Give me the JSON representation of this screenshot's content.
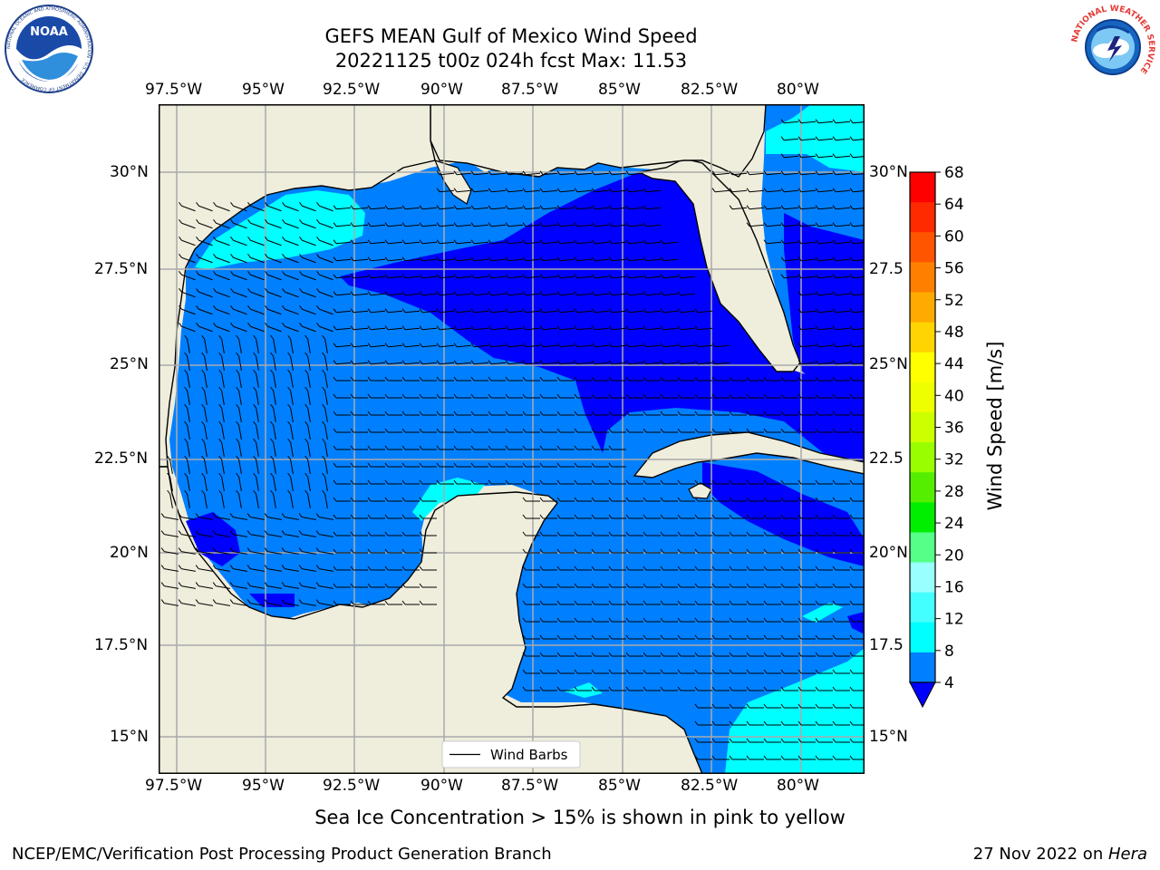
{
  "title_line1": "GEFS MEAN Gulf of Mexico Wind Speed",
  "title_line2": "20221125 t00z 024h fcst   Max: 11.53",
  "logos": {
    "noaa_text": "NOAA",
    "noaa_ring_text": "NATIONAL OCEANIC AND ATMOSPHERIC ADMINISTRATION · U.S. DEPARTMENT OF COMMERCE",
    "nws_ring_text": "NATIONAL WEATHER SERVICE"
  },
  "map": {
    "lon_ticks": [
      "97.5°W",
      "95°W",
      "92.5°W",
      "90°W",
      "87.5°W",
      "85°W",
      "82.5°W",
      "80°W"
    ],
    "lat_ticks": [
      "30°N",
      "27.5°N",
      "25°N",
      "22.5°N",
      "20°N",
      "17.5°N",
      "15°N"
    ],
    "lat_ticks_right": [
      "30°N",
      "27.5",
      "25°N",
      "22.5",
      "20°N",
      "17.5",
      "15°N"
    ],
    "legend_label": "Wind Barbs",
    "colors": {
      "land": "#efeddc",
      "band_4_8": "#0080ff",
      "band_lt4": "#0000ff",
      "band_8_12": "#00ffff",
      "band_12_16": "#40ffff"
    }
  },
  "colorbar": {
    "label": "Wind Speed [m/s]",
    "ticks": [
      "68",
      "64",
      "60",
      "56",
      "52",
      "48",
      "44",
      "40",
      "36",
      "32",
      "28",
      "24",
      "20",
      "16",
      "12",
      "8",
      "4"
    ],
    "colors": [
      "#ff0000",
      "#ff2a00",
      "#ff5500",
      "#ff8000",
      "#ffaa00",
      "#ffd400",
      "#ffff00",
      "#eeff00",
      "#ccff00",
      "#99ff00",
      "#55ee00",
      "#00ee00",
      "#55ff88",
      "#99ffff",
      "#44ffff",
      "#00ffff",
      "#0080ff"
    ],
    "under_color": "#0000ff"
  },
  "caption": "Sea Ice Concentration > 15% is shown in pink to yellow",
  "footer_left": "NCEP/EMC/Verification Post Processing Product Generation Branch",
  "footer_date": "27 Nov 2022 on ",
  "footer_host": "Hera"
}
